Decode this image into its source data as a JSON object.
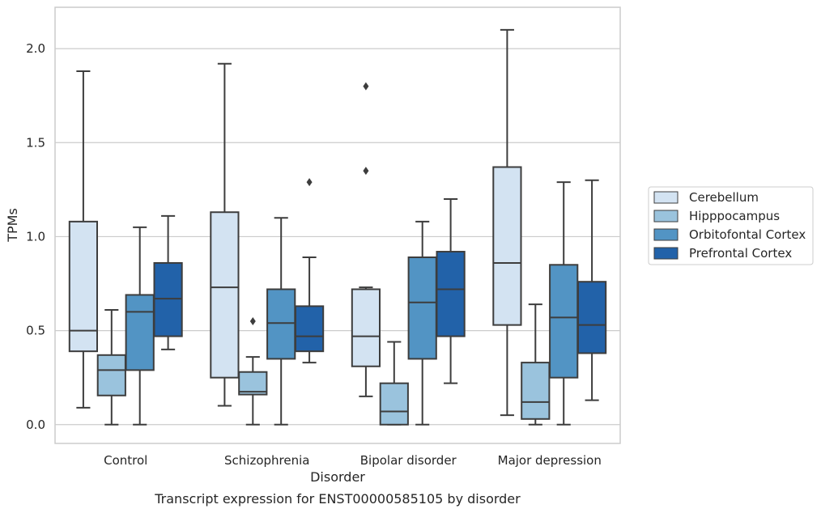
{
  "chart_data": {
    "type": "boxplot",
    "caption": "Transcript expression for ENST00000585105 by disorder",
    "xlabel": "Disorder",
    "ylabel": "TPMs",
    "ylim": [
      -0.1,
      2.22
    ],
    "yticks": [
      "0.0",
      "0.5",
      "1.0",
      "1.5",
      "2.0"
    ],
    "grid": "horizontal",
    "legend_position": "right",
    "categories": [
      "Control",
      "Schizophrenia",
      "Bipolar disorder",
      "Major depression"
    ],
    "series": [
      {
        "name": "Cerebellum",
        "color": "#d3e3f2",
        "boxes": [
          {
            "whislo": 0.09,
            "q1": 0.39,
            "med": 0.5,
            "q3": 1.08,
            "whishi": 1.88,
            "fliers": []
          },
          {
            "whislo": 0.1,
            "q1": 0.25,
            "med": 0.73,
            "q3": 1.13,
            "whishi": 1.92,
            "fliers": []
          },
          {
            "whislo": 0.15,
            "q1": 0.31,
            "med": 0.47,
            "q3": 0.72,
            "whishi": 0.73,
            "fliers": [
              1.35,
              1.8
            ]
          },
          {
            "whislo": 0.05,
            "q1": 0.53,
            "med": 0.86,
            "q3": 1.37,
            "whishi": 2.1,
            "fliers": []
          }
        ]
      },
      {
        "name": "Hipppocampus",
        "color": "#9ac3dd",
        "boxes": [
          {
            "whislo": 0.0,
            "q1": 0.155,
            "med": 0.29,
            "q3": 0.37,
            "whishi": 0.61,
            "fliers": []
          },
          {
            "whislo": 0.0,
            "q1": 0.16,
            "med": 0.175,
            "q3": 0.28,
            "whishi": 0.36,
            "fliers": [
              0.55
            ]
          },
          {
            "whislo": 0.0,
            "q1": 0.0,
            "med": 0.07,
            "q3": 0.22,
            "whishi": 0.44,
            "fliers": []
          },
          {
            "whislo": 0.0,
            "q1": 0.03,
            "med": 0.12,
            "q3": 0.33,
            "whishi": 0.64,
            "fliers": []
          }
        ]
      },
      {
        "name": "Orbitofontal Cortex",
        "color": "#5294c4",
        "boxes": [
          {
            "whislo": 0.0,
            "q1": 0.29,
            "med": 0.6,
            "q3": 0.69,
            "whishi": 1.05,
            "fliers": []
          },
          {
            "whislo": 0.0,
            "q1": 0.35,
            "med": 0.54,
            "q3": 0.72,
            "whishi": 1.1,
            "fliers": []
          },
          {
            "whislo": 0.0,
            "q1": 0.35,
            "med": 0.65,
            "q3": 0.89,
            "whishi": 1.08,
            "fliers": []
          },
          {
            "whislo": 0.0,
            "q1": 0.25,
            "med": 0.57,
            "q3": 0.85,
            "whishi": 1.29,
            "fliers": []
          }
        ]
      },
      {
        "name": "Prefrontal Cortex",
        "color": "#2262a9",
        "boxes": [
          {
            "whislo": 0.4,
            "q1": 0.47,
            "med": 0.67,
            "q3": 0.86,
            "whishi": 1.11,
            "fliers": []
          },
          {
            "whislo": 0.33,
            "q1": 0.39,
            "med": 0.47,
            "q3": 0.63,
            "whishi": 0.89,
            "fliers": [
              1.29
            ]
          },
          {
            "whislo": 0.22,
            "q1": 0.47,
            "med": 0.72,
            "q3": 0.92,
            "whishi": 1.2,
            "fliers": []
          },
          {
            "whislo": 0.13,
            "q1": 0.38,
            "med": 0.53,
            "q3": 0.76,
            "whishi": 1.3,
            "fliers": []
          }
        ]
      }
    ]
  }
}
